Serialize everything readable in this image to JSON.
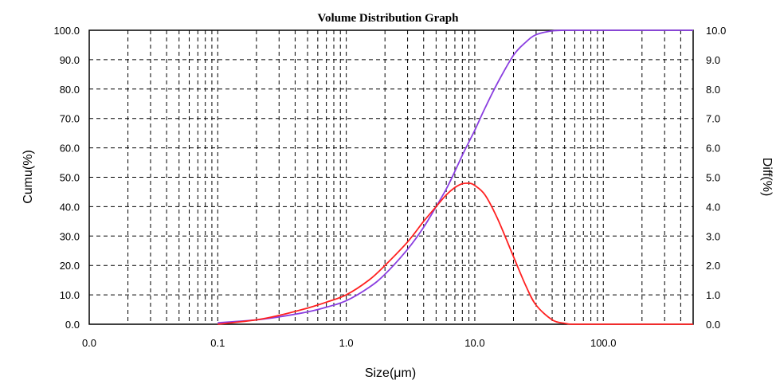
{
  "chart_data": {
    "type": "line",
    "title": "Volume Distribution Graph",
    "xlabel": "Size(μm)",
    "ylabel": "Cumu(%)",
    "y2label": "Diff(%)",
    "x_scale": "log",
    "x_ticks": [
      {
        "value": 0.01,
        "label": "0.0"
      },
      {
        "value": 0.1,
        "label": "0.1"
      },
      {
        "value": 1,
        "label": "1.0"
      },
      {
        "value": 10,
        "label": "10.0"
      },
      {
        "value": 100,
        "label": "100.0"
      }
    ],
    "xlim": [
      0.01,
      500
    ],
    "ylim": [
      0,
      100
    ],
    "y2lim": [
      0,
      10
    ],
    "y_ticks": [
      "0.0",
      "10.0",
      "20.0",
      "30.0",
      "40.0",
      "50.0",
      "60.0",
      "70.0",
      "80.0",
      "90.0",
      "100.0"
    ],
    "y2_ticks": [
      "0.0",
      "1.0",
      "2.0",
      "3.0",
      "4.0",
      "5.0",
      "6.0",
      "7.0",
      "8.0",
      "9.0",
      "10.0"
    ],
    "grid": true,
    "colors": {
      "cumulative": "#8a3ee0",
      "differential": "#ff2020"
    },
    "series": [
      {
        "id": "cumulative",
        "axis": "left",
        "x": [
          0.1,
          0.2,
          0.3,
          0.5,
          0.7,
          1,
          1.5,
          2,
          3,
          4,
          5,
          6,
          7,
          8,
          9,
          10,
          12,
          15,
          20,
          25,
          30,
          40,
          50,
          100,
          500
        ],
        "values": [
          0.5,
          1.5,
          2.5,
          4.2,
          5.8,
          8.0,
          12.5,
          17.0,
          25.5,
          33.0,
          40.0,
          46.0,
          52.0,
          57.5,
          62.0,
          66.0,
          73.5,
          82.0,
          91.5,
          96.0,
          98.5,
          99.8,
          100,
          100,
          100
        ]
      },
      {
        "id": "differential",
        "axis": "right",
        "x": [
          0.1,
          0.2,
          0.3,
          0.5,
          0.7,
          1,
          1.5,
          2,
          3,
          4,
          5,
          6,
          7,
          8,
          9,
          10,
          12,
          15,
          20,
          25,
          30,
          40,
          50,
          60,
          100,
          500
        ],
        "values": [
          0.0,
          0.15,
          0.3,
          0.55,
          0.75,
          1.0,
          1.5,
          2.0,
          2.8,
          3.5,
          4.0,
          4.4,
          4.65,
          4.78,
          4.8,
          4.72,
          4.4,
          3.6,
          2.3,
          1.3,
          0.65,
          0.15,
          0.03,
          0.0,
          0.0,
          0.0
        ]
      }
    ]
  }
}
